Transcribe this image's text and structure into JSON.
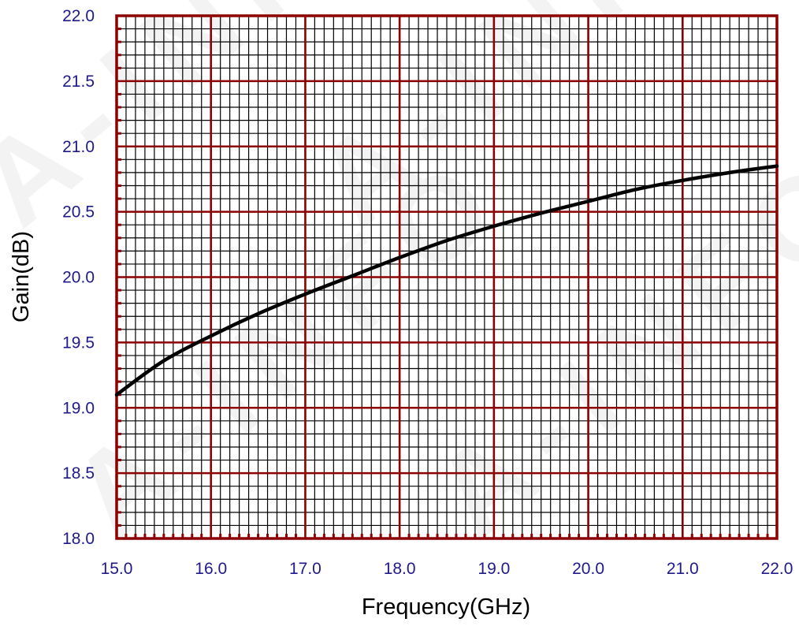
{
  "watermark": "A-INFO",
  "colors": {
    "major_grid": "#8b0000",
    "minor_grid": "#000000",
    "curve": "#000000",
    "tick_text": "#1f1a8c",
    "axis_title": "#000000",
    "background": "#ffffff"
  },
  "chart_data": {
    "type": "line",
    "xlabel": "Frequency(GHz)",
    "ylabel": "Gain(dB)",
    "xlim": [
      15.0,
      22.0
    ],
    "ylim": [
      18.0,
      22.0
    ],
    "grid": true,
    "xticks": [
      "15.0",
      "16.0",
      "17.0",
      "18.0",
      "19.0",
      "20.0",
      "21.0",
      "22.0"
    ],
    "yticks": [
      "18.0",
      "18.5",
      "19.0",
      "19.5",
      "20.0",
      "20.5",
      "21.0",
      "21.5",
      "22.0"
    ],
    "series": [
      {
        "x": [
          15.0,
          15.5,
          16.0,
          16.5,
          17.0,
          17.5,
          18.0,
          18.5,
          19.0,
          19.5,
          20.0,
          20.5,
          21.0,
          21.5,
          22.0
        ],
        "y": [
          19.1,
          19.36,
          19.55,
          19.72,
          19.87,
          20.01,
          20.15,
          20.28,
          20.39,
          20.49,
          20.58,
          20.67,
          20.74,
          20.8,
          20.85
        ]
      }
    ]
  }
}
